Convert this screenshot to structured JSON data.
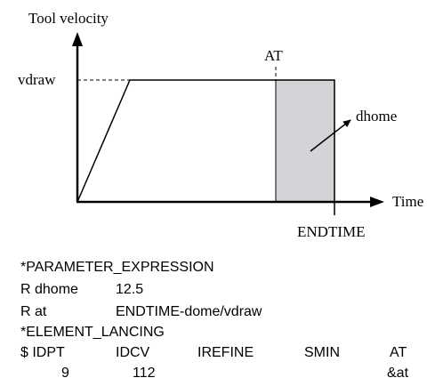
{
  "diagram": {
    "y_axis_label": "Tool velocity",
    "x_axis_label": "Time",
    "vdraw_label": "vdraw",
    "at_label": "AT",
    "endtime_label": "ENDTIME",
    "dhome_label": "dhome",
    "colors": {
      "stroke": "#000000",
      "shade": "#d3d3d8"
    }
  },
  "keyword_file": {
    "parameter_expression": "*PARAMETER_EXPRESSION",
    "r_dhome_name": "R dhome",
    "r_dhome_value": "12.5",
    "r_at_name": "R at",
    "r_at_value": "ENDTIME-dome/vdraw",
    "element_lancing": "*ELEMENT_LANCING",
    "headers": [
      "$ IDPT",
      "IDCV",
      "IREFINE",
      "SMIN",
      "AT"
    ],
    "values": [
      "9",
      "112",
      "&at"
    ]
  }
}
